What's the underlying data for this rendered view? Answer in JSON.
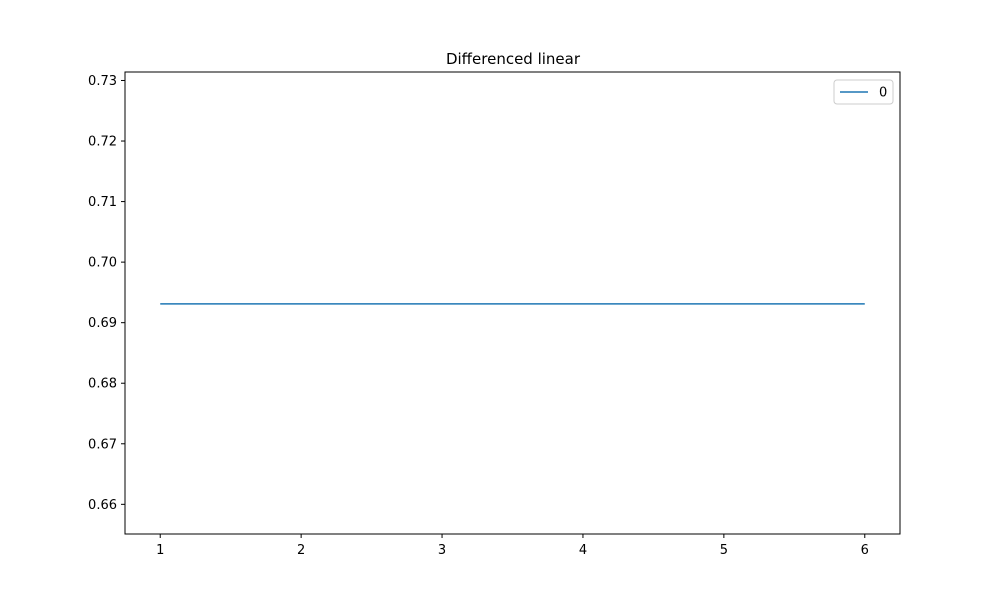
{
  "chart_data": {
    "type": "line",
    "title": "Differenced linear",
    "xlabel": "",
    "ylabel": "",
    "x": [
      1,
      2,
      3,
      4,
      5,
      6
    ],
    "xticks": [
      "1",
      "2",
      "3",
      "4",
      "5",
      "6"
    ],
    "xlim": [
      0.75,
      6.25
    ],
    "ylim": [
      0.6551,
      0.7314
    ],
    "yticks": [
      "0.66",
      "0.67",
      "0.68",
      "0.69",
      "0.70",
      "0.71",
      "0.72",
      "0.73"
    ],
    "grid": false,
    "legend_position": "top-right",
    "series": [
      {
        "name": "0",
        "color": "#1f77b4",
        "values": [
          0.6931,
          0.6931,
          0.6931,
          0.6931,
          0.6931,
          0.6931
        ]
      }
    ]
  }
}
